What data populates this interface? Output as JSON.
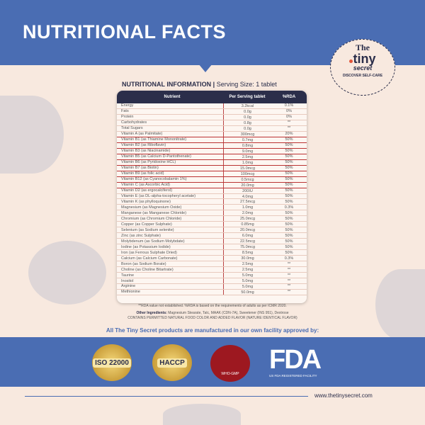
{
  "header": {
    "title": "NUTRITIONAL FACTS"
  },
  "brand": {
    "logo_line1": "The",
    "logo_line2": "tiny",
    "logo_line3": "secret",
    "tagline": "DISCOVER SELF-CARE"
  },
  "table": {
    "title": "NUTRITIONAL INFORMATION |",
    "serving": " Serving Size: 1 tablet",
    "columns": [
      "Nutrient",
      "Per Serving tablet",
      "%RDA"
    ],
    "rows": [
      [
        "Energy",
        "3.2kcal",
        "0.1%"
      ],
      [
        "Fats",
        "0.0g",
        "0%"
      ],
      [
        "Protein",
        "0.0g",
        "0%"
      ],
      [
        "Carbohydrates",
        "0.8g",
        "**"
      ],
      [
        "Total Sugars",
        "0.0g",
        "**"
      ],
      [
        "Vitamin A (as Palmitate)",
        "300mcg",
        "20%"
      ],
      [
        "Vitamin B1 (as Thiamine Mononitrate)",
        "0.7mg",
        "50%"
      ],
      [
        "Vitamin B2 (as Riboflavin)",
        "0.8mg",
        "50%"
      ],
      [
        "Vitamin B3 (as Niacinamide)",
        "9.0mg",
        "50%"
      ],
      [
        "Vitamin B5 (as Calcium D-Pantothenate)",
        "2.5mg",
        "50%"
      ],
      [
        "Vitamin B6 (as Pyridoxine HCL)",
        "1.0mg",
        "50%"
      ],
      [
        "Vitamin B7 (as Biotin)",
        "15.0mcg",
        "50%"
      ],
      [
        "Vitamin B9 (as folic acid)",
        "100mcg",
        "50%"
      ],
      [
        "Vitamin B12 (as Cyanocobalamin 1%)",
        "0.5mcg",
        "50%"
      ],
      [
        "Vitamin C (as Ascorbic Acid)",
        "20.0mg",
        "50%"
      ],
      [
        "Vitamin D2 (as ergocalciferol)",
        "200IU",
        "50%"
      ],
      [
        "Vitamin E (as DL-alpha-tocopheryl acetate)",
        "4.0mg",
        "50%"
      ],
      [
        "Vitamin K (as phylloquinone)",
        "27.5mcg",
        "50%"
      ],
      [
        "Magnesium (as Magnesium Oxide)",
        "1.0mg",
        "0.3%"
      ],
      [
        "Manganese (as Manganese Chloride)",
        "2.0mg",
        "50%"
      ],
      [
        "Chromium (as Chromium Chloride)",
        "25.0mcg",
        "50%"
      ],
      [
        "Copper (as Copper Sulphate)",
        "0.85mg",
        "50%"
      ],
      [
        "Selenium (as Sodium selenite)",
        "20.0mcg",
        "50%"
      ],
      [
        "Zinc (as zinc Sulphate)",
        "6.0mg",
        "50%"
      ],
      [
        "Molybdenum (as Sodium Molybdate)",
        "22.5mcg",
        "50%"
      ],
      [
        "Iodine (as Potassium Iodide)",
        "75.0mcg",
        "50%"
      ],
      [
        "Iron (as Ferrous Sulphate Dried)",
        "8.5mg",
        "50%"
      ],
      [
        "Calcium (as Calcium Carbonate)",
        "30.0mg",
        "0.3%"
      ],
      [
        "Boron (as Sodium Borate)",
        "2.5mg",
        "**"
      ],
      [
        "Choline (as Choline Bitartrate)",
        "2.5mg",
        "**"
      ],
      [
        "Taurine",
        "5.0mg",
        "**"
      ],
      [
        "Inositol",
        "5.0mg",
        "**"
      ],
      [
        "Arginine",
        "5.0mg",
        "**"
      ],
      [
        "Methionine",
        "50.0mg",
        "**"
      ]
    ]
  },
  "footnotes": {
    "rda": "**RDA value not established. %RDA is based on the requirements of adults as per ICMR 2020.",
    "other_label": "Other Ingredients:",
    "other_text": " Magnesium Stearate, Talc, MAAK (CDN-7A), Sweetener (INS 951), Dextrose",
    "contains": "CONTAINS PERMITTED NATURAL FOOD COLOR AND ADDED FLAVOR (NATURE IDENTICAL FLAVOR)"
  },
  "certifications": {
    "heading": "All The Tiny Secret products are manufactured in our own facility approved by:",
    "iso": "ISO 22000",
    "haccp": "HACCP",
    "who": "WHO-GMP",
    "fda": "FDA",
    "fda_sub": "US FDA REGISTERED FACILITY"
  },
  "footer": {
    "url": "www.thetinysecret.com"
  },
  "colors": {
    "blue": "#4a6db3",
    "navy": "#2b2e4a",
    "background": "#f8e9df"
  }
}
